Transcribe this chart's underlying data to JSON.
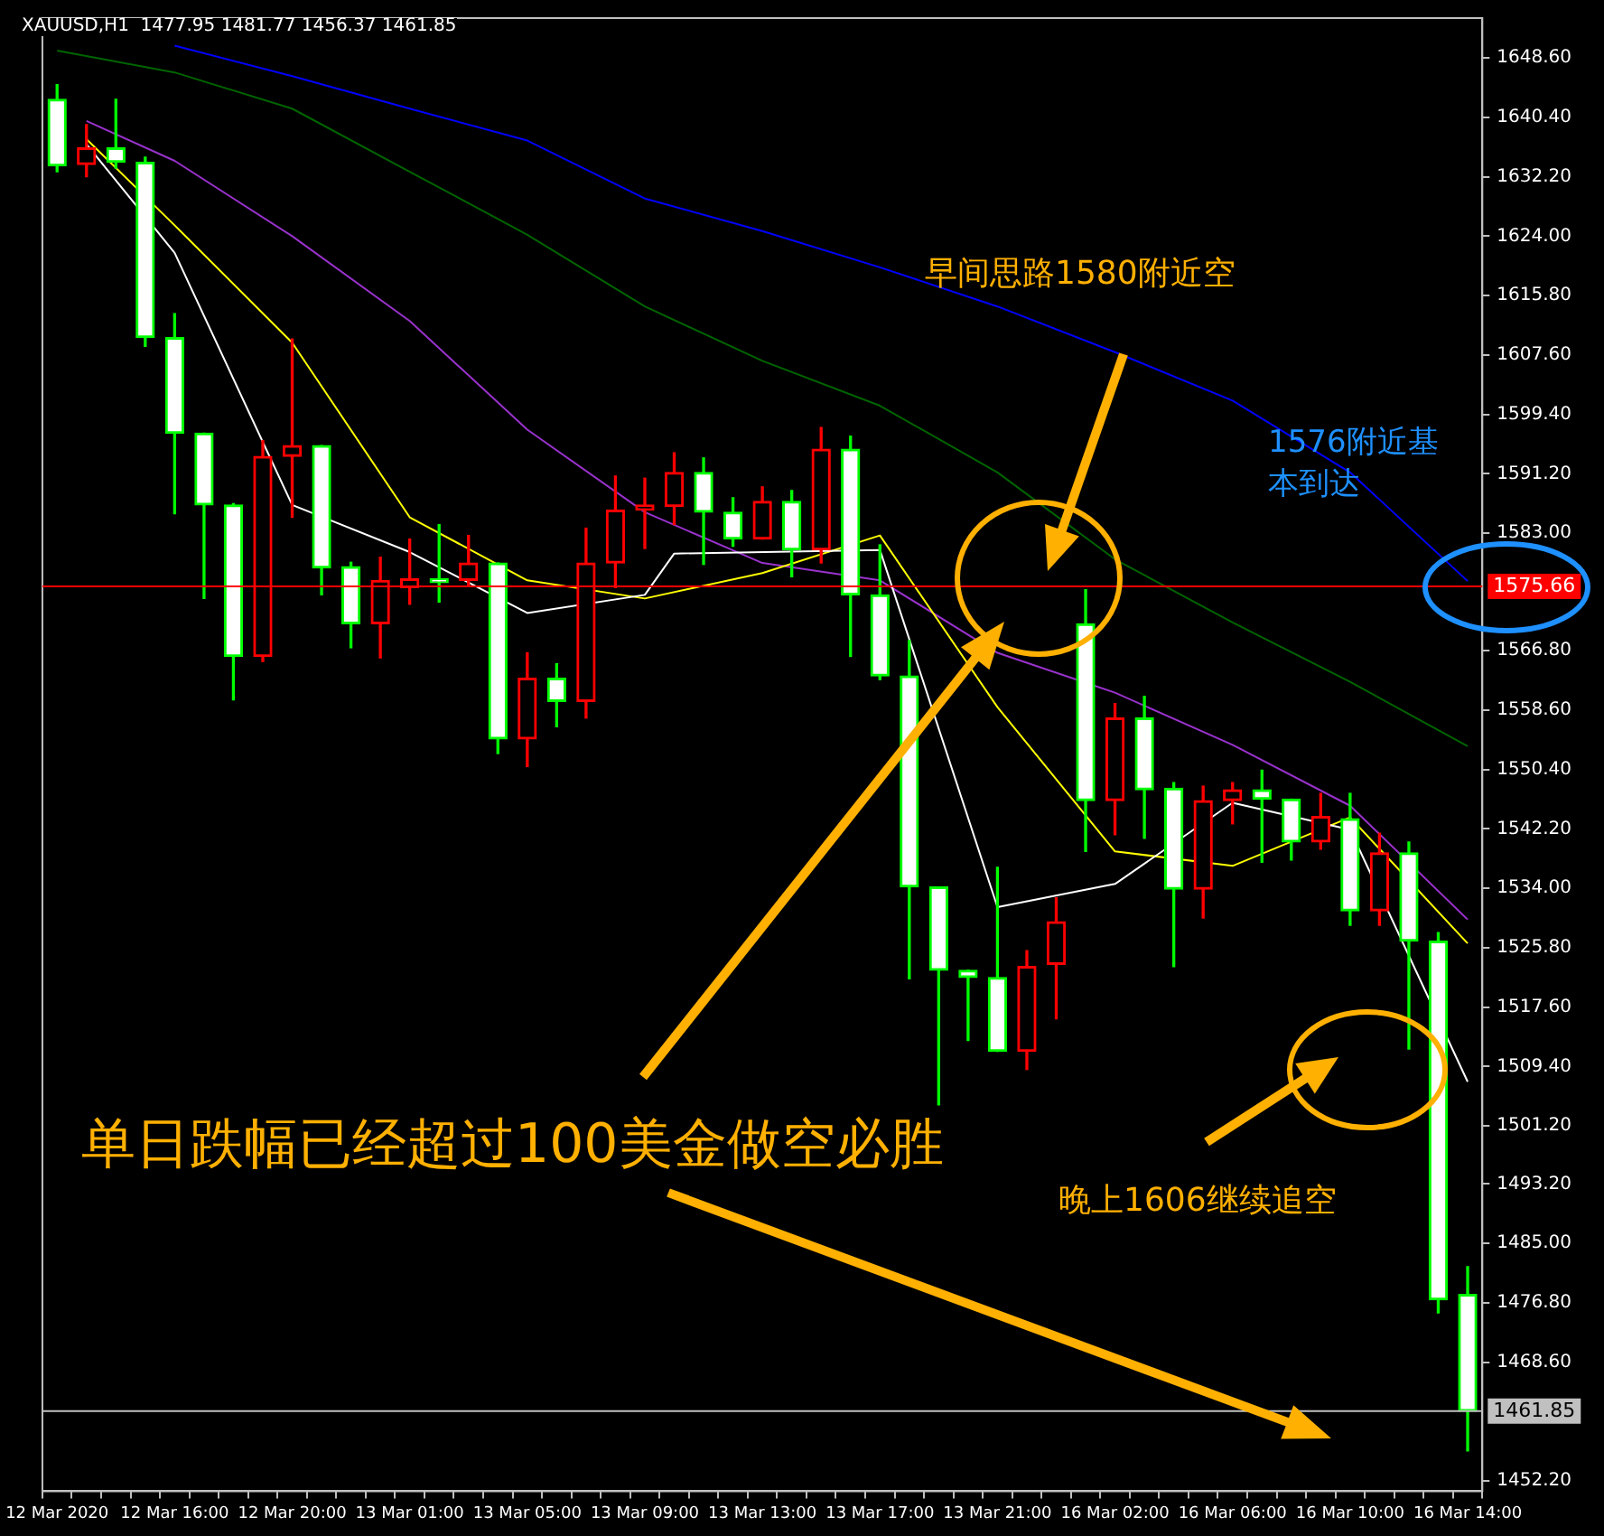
{
  "chart_data": {
    "type": "candlestick",
    "title": "XAUUSD,H1  1477.95 1481.77 1456.37 1461.85",
    "categories": [
      "12 Mar 2020",
      null,
      null,
      null,
      "12 Mar 16:00",
      null,
      null,
      null,
      "12 Mar 20:00",
      null,
      null,
      null,
      "13 Mar 01:00",
      null,
      null,
      null,
      "13 Mar 05:00",
      null,
      null,
      null,
      "13 Mar 09:00",
      null,
      null,
      null,
      "13 Mar 13:00",
      null,
      null,
      null,
      "13 Mar 17:00",
      null,
      null,
      null,
      "13 Mar 21:00",
      null,
      null,
      null,
      "16 Mar 02:00",
      null,
      null,
      null,
      "16 Mar 06:00",
      null,
      null,
      null,
      "16 Mar 10:00",
      null,
      null,
      null,
      "16 Mar 14:00"
    ],
    "ohlc": [
      [
        1642.9,
        1644.9,
        1632.9,
        1633.7
      ],
      [
        1633.9,
        1639.4,
        1632.2,
        1636.2
      ],
      [
        1636.2,
        1642.9,
        1633.4,
        1634.2
      ],
      [
        1634.2,
        1634.9,
        1608.8,
        1610.0
      ],
      [
        1610.0,
        1613.3,
        1585.7,
        1596.8
      ],
      [
        1596.8,
        1596.8,
        1574.0,
        1586.9
      ],
      [
        1586.9,
        1587.1,
        1560.0,
        1566.0
      ],
      [
        1566.0,
        1595.8,
        1565.3,
        1593.6
      ],
      [
        1593.6,
        1609.8,
        1585.2,
        1595.1
      ],
      [
        1595.1,
        1595.1,
        1574.5,
        1578.2
      ],
      [
        1578.4,
        1579.0,
        1567.2,
        1570.5
      ],
      [
        1570.5,
        1579.7,
        1565.8,
        1576.5
      ],
      [
        1575.5,
        1582.2,
        1573.2,
        1576.7
      ],
      [
        1576.5,
        1584.2,
        1573.5,
        1576.2
      ],
      [
        1576.5,
        1582.7,
        1575.8,
        1578.9
      ],
      [
        1578.9,
        1578.9,
        1552.6,
        1554.6
      ],
      [
        1554.6,
        1566.5,
        1550.8,
        1563.0
      ],
      [
        1563.0,
        1565.0,
        1556.3,
        1559.8
      ],
      [
        1559.8,
        1583.7,
        1557.5,
        1578.9
      ],
      [
        1578.9,
        1590.9,
        1575.5,
        1586.2
      ],
      [
        1586.2,
        1590.6,
        1580.9,
        1586.9
      ],
      [
        1586.7,
        1594.1,
        1584.2,
        1591.4
      ],
      [
        1591.4,
        1593.4,
        1578.7,
        1585.9
      ],
      [
        1585.9,
        1587.9,
        1581.2,
        1582.2
      ],
      [
        1582.2,
        1589.4,
        1582.2,
        1587.4
      ],
      [
        1587.4,
        1588.9,
        1577.0,
        1580.7
      ],
      [
        1580.7,
        1597.6,
        1578.9,
        1594.6
      ],
      [
        1594.6,
        1596.4,
        1566.0,
        1574.5
      ],
      [
        1574.5,
        1581.4,
        1562.8,
        1563.3
      ],
      [
        1563.3,
        1568.2,
        1521.5,
        1534.2
      ],
      [
        1534.2,
        1534.2,
        1504.1,
        1522.7
      ],
      [
        1522.7,
        1522.7,
        1513.0,
        1521.7
      ],
      [
        1521.7,
        1536.9,
        1511.5,
        1511.5
      ],
      [
        1511.5,
        1525.4,
        1509.0,
        1523.2
      ],
      [
        1523.5,
        1532.7,
        1516.0,
        1529.4
      ],
      [
        1570.5,
        1575.2,
        1539.1,
        1546.1
      ],
      [
        1546.1,
        1559.5,
        1541.4,
        1557.5
      ],
      [
        1557.5,
        1560.5,
        1540.9,
        1547.6
      ],
      [
        1547.8,
        1548.6,
        1523.2,
        1533.9
      ],
      [
        1533.9,
        1548.1,
        1529.9,
        1546.1
      ],
      [
        1546.1,
        1548.6,
        1542.9,
        1547.6
      ],
      [
        1547.6,
        1550.3,
        1537.6,
        1546.3
      ],
      [
        1546.3,
        1546.3,
        1537.9,
        1540.4
      ],
      [
        1540.4,
        1547.1,
        1539.4,
        1543.9
      ],
      [
        1543.6,
        1547.1,
        1528.9,
        1530.9
      ],
      [
        1530.9,
        1541.6,
        1528.9,
        1538.9
      ],
      [
        1538.9,
        1540.4,
        1511.8,
        1526.7
      ],
      [
        1526.7,
        1527.9,
        1475.4,
        1477.2
      ],
      [
        1477.95,
        1481.77,
        1456.37,
        1461.85
      ]
    ],
    "colors": [
      "#00ff00",
      "#ff0000",
      "#00ff00",
      "#00ff00",
      "#00ff00",
      "#00ff00",
      "#00ff00",
      "#ff0000",
      "#ff0000",
      "#00ff00",
      "#00ff00",
      "#ff0000",
      "#ff0000",
      "#00ff00",
      "#ff0000",
      "#00ff00",
      "#ff0000",
      "#00ff00",
      "#ff0000",
      "#ff0000",
      "#ff0000",
      "#ff0000",
      "#00ff00",
      "#00ff00",
      "#ff0000",
      "#00ff00",
      "#ff0000",
      "#00ff00",
      "#00ff00",
      "#00ff00",
      "#00ff00",
      "#00ff00",
      "#00ff00",
      "#ff0000",
      "#ff0000",
      "#00ff00",
      "#ff0000",
      "#00ff00",
      "#00ff00",
      "#ff0000",
      "#ff0000",
      "#00ff00",
      "#00ff00",
      "#ff0000",
      "#00ff00",
      "#ff0000",
      "#00ff00",
      "#00ff00",
      "#00ff00"
    ],
    "series": [
      {
        "type": "line",
        "color": "#ffffff",
        "values": [
          null,
          1636.7,
          null,
          null,
          1621.7,
          null,
          null,
          null,
          1586.9,
          null,
          null,
          null,
          1580.4,
          null,
          null,
          null,
          1572.0,
          null,
          null,
          null,
          1574.5,
          1580.2,
          null,
          null,
          null,
          null,
          null,
          null,
          1580.7,
          null,
          null,
          null,
          1531.4,
          null,
          null,
          null,
          1534.6,
          null,
          null,
          null,
          1545.8,
          null,
          null,
          null,
          1542.1,
          null,
          null,
          null,
          1507.3
        ]
      },
      {
        "type": "line",
        "color": "#ffff00",
        "values": [
          null,
          1637.4,
          null,
          null,
          1625.5,
          null,
          null,
          null,
          1609.3,
          null,
          null,
          null,
          1585.2,
          null,
          null,
          null,
          1576.5,
          null,
          null,
          null,
          1574.0,
          null,
          null,
          null,
          1577.5,
          null,
          null,
          null,
          1582.7,
          null,
          null,
          null,
          1559.0,
          null,
          null,
          null,
          1539.1,
          null,
          null,
          null,
          1537.1,
          null,
          null,
          null,
          1543.8,
          null,
          null,
          null,
          1526.4
        ]
      },
      {
        "type": "line",
        "color": "#9932cc",
        "values": [
          null,
          1639.9,
          null,
          null,
          1634.4,
          null,
          null,
          null,
          1624.0,
          null,
          null,
          null,
          1612.3,
          null,
          null,
          null,
          1597.3,
          null,
          null,
          null,
          1585.9,
          null,
          null,
          null,
          1578.9,
          null,
          null,
          null,
          1576.5,
          null,
          null,
          null,
          1566.5,
          null,
          null,
          null,
          1561.0,
          null,
          null,
          null,
          1553.8,
          null,
          null,
          null,
          1545.4,
          null,
          null,
          null,
          1529.7
        ]
      },
      {
        "type": "line",
        "color": "#006400",
        "values": [
          1649.6,
          null,
          null,
          null,
          1646.6,
          null,
          null,
          null,
          1641.6,
          null,
          null,
          null,
          1632.9,
          null,
          null,
          null,
          1624.2,
          null,
          null,
          null,
          1614.3,
          null,
          null,
          null,
          1606.8,
          null,
          null,
          null,
          1600.6,
          null,
          null,
          null,
          1591.4,
          null,
          null,
          null,
          1579.4,
          null,
          null,
          null,
          1570.7,
          null,
          null,
          null,
          1562.5,
          null,
          null,
          null,
          1553.6
        ]
      },
      {
        "type": "line",
        "color": "#0000ff",
        "values": [
          null,
          null,
          null,
          null,
          1650.3,
          null,
          null,
          null,
          1646.1,
          null,
          null,
          null,
          1641.6,
          null,
          null,
          null,
          1637.2,
          null,
          null,
          null,
          1629.2,
          null,
          null,
          null,
          1624.7,
          null,
          null,
          null,
          1619.7,
          null,
          null,
          null,
          1614.3,
          null,
          null,
          null,
          1608.0,
          null,
          null,
          null,
          1601.3,
          null,
          null,
          null,
          1591.4,
          null,
          null,
          null,
          1576.4
        ]
      }
    ],
    "ref_lines": [
      {
        "axis": "y",
        "value": 1575.66,
        "label": "1575.66",
        "color": "#ff0000"
      },
      {
        "axis": "y",
        "value": 1461.85,
        "label": "1461.85",
        "color": "#c0c0c0"
      }
    ],
    "annotations": [
      "早间思路1580附近空",
      "1576附近基本到达",
      "单日跌幅已经超过100美金做空必胜",
      "晚上1606继续追空"
    ],
    "ylim": [
      1450.8,
      1654.1
    ],
    "yticks": [
      {
        "value": 1452.2,
        "label": "1452.20"
      },
      {
        "value": 1468.6,
        "label": "1468.60"
      },
      {
        "value": 1476.8,
        "label": "1476.80"
      },
      {
        "value": 1485,
        "label": "1485.00"
      },
      {
        "value": 1493.2,
        "label": "1493.20"
      },
      {
        "value": 1501.2,
        "label": "1501.20"
      },
      {
        "value": 1509.4,
        "label": "1509.40"
      },
      {
        "value": 1517.6,
        "label": "1517.60"
      },
      {
        "value": 1525.8,
        "label": "1525.80"
      },
      {
        "value": 1534,
        "label": "1534.00"
      },
      {
        "value": 1542.2,
        "label": "1542.20"
      },
      {
        "value": 1550.4,
        "label": "1550.40"
      },
      {
        "value": 1558.6,
        "label": "1558.60"
      },
      {
        "value": 1566.8,
        "label": "1566.80"
      },
      {
        "value": 1583,
        "label": "1583.00"
      },
      {
        "value": 1591.2,
        "label": "1591.20"
      },
      {
        "value": 1599.4,
        "label": "1599.40"
      },
      {
        "value": 1607.6,
        "label": "1607.60"
      },
      {
        "value": 1615.8,
        "label": "1615.80"
      },
      {
        "value": 1624,
        "label": "1624.00"
      },
      {
        "value": 1632.2,
        "label": "1632.20"
      },
      {
        "value": 1640.4,
        "label": "1640.40"
      },
      {
        "value": 1648.6,
        "label": "1648.60"
      }
    ],
    "grid": false,
    "legend": false
  }
}
